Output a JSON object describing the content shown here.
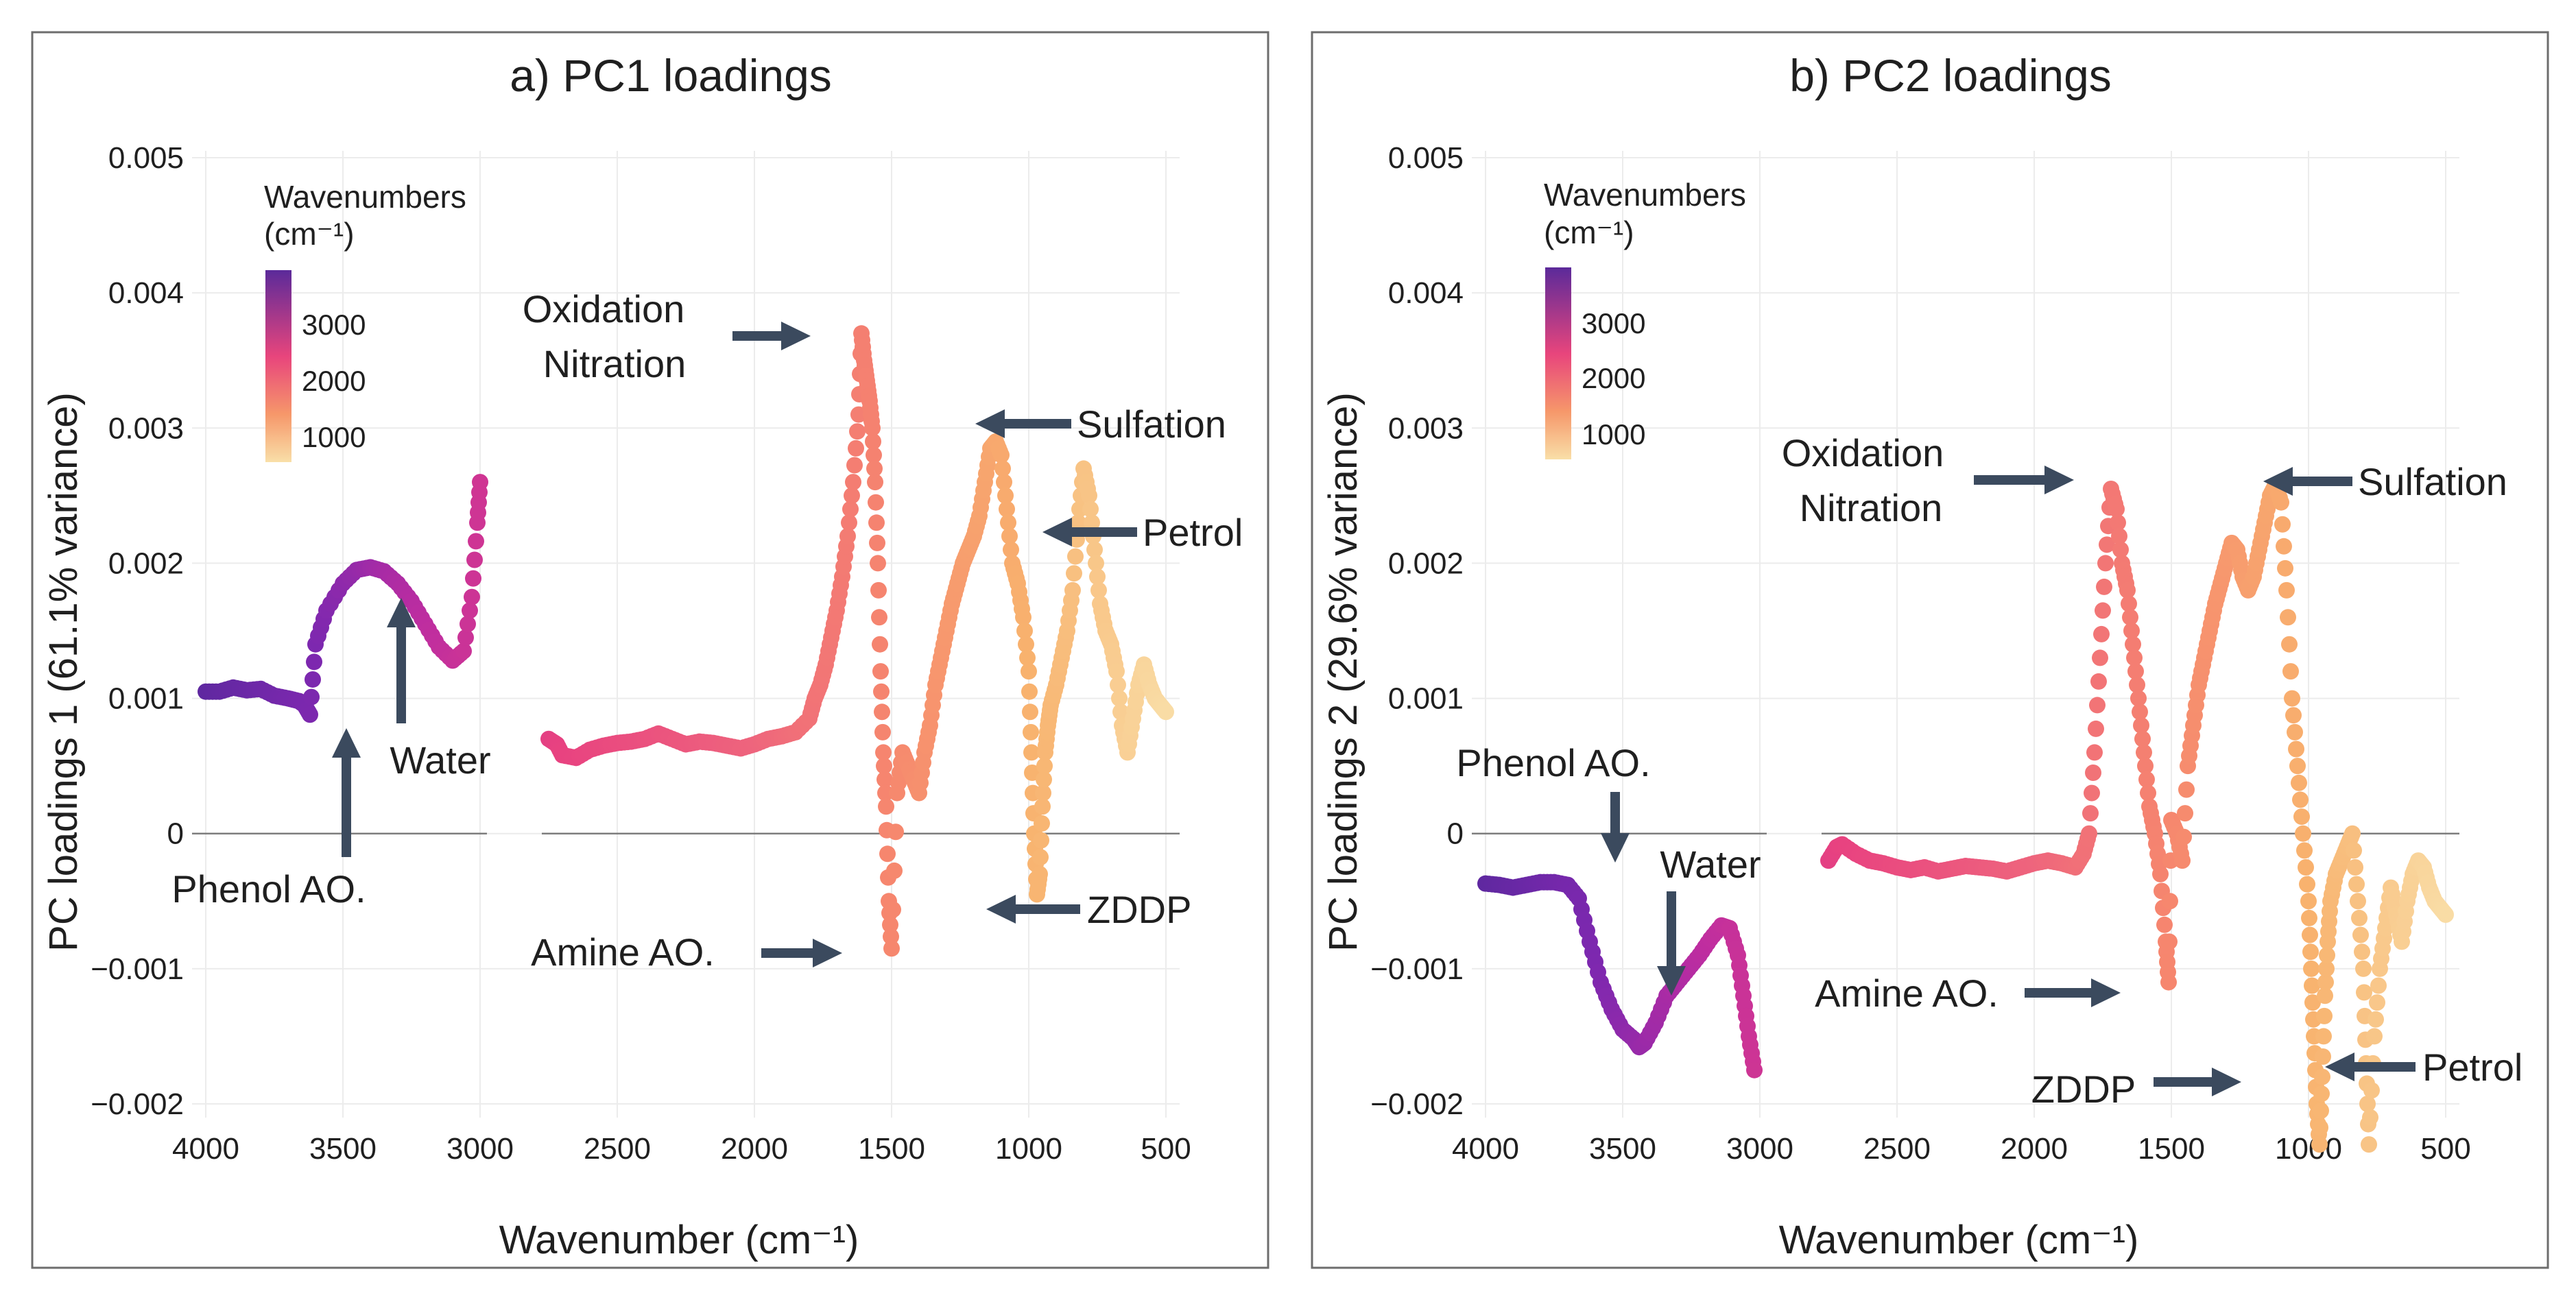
{
  "chart_data": [
    {
      "type": "scatter",
      "id": "pc1",
      "title": "a) PC1 loadings",
      "xlabel": "Wavenumber (cm⁻¹)",
      "ylabel": "PC loadings 1 (61.1% variance)",
      "xlim": [
        4000,
        500
      ],
      "x_reversed": true,
      "ylim": [
        -0.002,
        0.005
      ],
      "xticks": [
        4000,
        3500,
        3000,
        2500,
        2000,
        1500,
        1000,
        500
      ],
      "xtick_labels": [
        "4000",
        "3500",
        "3000",
        "2500",
        "2000",
        "1500",
        "1000",
        "500"
      ],
      "yticks": [
        -0.002,
        -0.001,
        0,
        0.001,
        0.002,
        0.003,
        0.004,
        0.005
      ],
      "ytick_labels": [
        "−0.002",
        "−0.001",
        "0",
        "0.001",
        "0.002",
        "0.003",
        "0.004",
        "0.005"
      ],
      "gap": [
        3000,
        2750
      ],
      "series": [
        {
          "name": "region-1",
          "x": [
            4000,
            3950,
            3900,
            3850,
            3800,
            3750,
            3700,
            3660,
            3640,
            3620,
            3600,
            3560,
            3500,
            3450,
            3400,
            3350,
            3300,
            3250,
            3200,
            3150,
            3100,
            3060,
            3030,
            3010,
            3000
          ],
          "y": [
            0.00105,
            0.00105,
            0.00108,
            0.00106,
            0.00107,
            0.00102,
            0.001,
            0.00098,
            0.00095,
            0.00088,
            0.0014,
            0.00165,
            0.00185,
            0.00195,
            0.00197,
            0.00194,
            0.00185,
            0.00172,
            0.00155,
            0.00138,
            0.00128,
            0.00135,
            0.00175,
            0.0023,
            0.0026
          ]
        },
        {
          "name": "region-2",
          "x": [
            2750,
            2720,
            2700,
            2650,
            2600,
            2550,
            2500,
            2450,
            2400,
            2350,
            2300,
            2250,
            2200,
            2150,
            2100,
            2050,
            2000,
            1950,
            1900,
            1850,
            1800,
            1780,
            1760,
            1740,
            1720,
            1700,
            1680,
            1660,
            1640,
            1620,
            1610,
            1600,
            1590,
            1580,
            1570,
            1560,
            1550,
            1540,
            1530,
            1520,
            1510,
            1500,
            1480,
            1460,
            1440,
            1420,
            1400,
            1380,
            1360,
            1340,
            1320,
            1300,
            1280,
            1260,
            1240,
            1220,
            1200,
            1180,
            1160,
            1140,
            1120,
            1100,
            1080,
            1060,
            1040,
            1020,
            1000,
            990,
            980,
            970,
            960,
            950,
            940,
            930,
            920,
            900,
            880,
            860,
            840,
            820,
            800,
            780,
            760,
            740,
            720,
            700,
            680,
            660,
            640,
            620,
            600,
            580,
            560,
            540,
            520,
            500
          ],
          "y": [
            0.0007,
            0.00066,
            0.00058,
            0.00056,
            0.00062,
            0.00065,
            0.00067,
            0.00068,
            0.0007,
            0.00074,
            0.0007,
            0.00066,
            0.00068,
            0.00067,
            0.00065,
            0.00063,
            0.00066,
            0.0007,
            0.00072,
            0.00075,
            0.00085,
            0.001,
            0.0011,
            0.00125,
            0.00145,
            0.00165,
            0.0019,
            0.0022,
            0.0026,
            0.0031,
            0.0037,
            0.0035,
            0.00335,
            0.0032,
            0.003,
            0.0026,
            0.002,
            0.0012,
            0.0006,
            0.0002,
            -0.0005,
            -0.00085,
            0.0003,
            0.0006,
            0.0005,
            0.0004,
            0.0003,
            0.0006,
            0.0008,
            0.0011,
            0.0013,
            0.0015,
            0.0017,
            0.00185,
            0.002,
            0.0021,
            0.0022,
            0.00235,
            0.0026,
            0.00285,
            0.0029,
            0.0028,
            0.0024,
            0.002,
            0.00185,
            0.0016,
            0.0012,
            0.0006,
            0.0,
            -0.00045,
            -0.0003,
            0.0002,
            0.0006,
            0.0008,
            0.00095,
            0.0011,
            0.0013,
            0.0015,
            0.0018,
            0.0023,
            0.0027,
            0.0025,
            0.0021,
            0.0017,
            0.0015,
            0.0014,
            0.0012,
            0.0008,
            0.0006,
            0.00085,
            0.0011,
            0.00125,
            0.0011,
            0.001,
            0.00095,
            0.0009
          ]
        }
      ],
      "annotations": [
        {
          "text": "Phenol AO."
        },
        {
          "text": "Water"
        },
        {
          "text": "Oxidation"
        },
        {
          "text": "Nitration"
        },
        {
          "text": "Amine AO."
        },
        {
          "text": "Sulfation"
        },
        {
          "text": "Petrol"
        },
        {
          "text": "ZDDP"
        }
      ],
      "legend": {
        "title_line1": "Wavenumbers",
        "title_line2": "(cm⁻¹)",
        "ticks": [
          "3000",
          "2000",
          "1000"
        ],
        "position": "top-left"
      }
    },
    {
      "type": "scatter",
      "id": "pc2",
      "title": "b) PC2 loadings",
      "xlabel": "Wavenumber (cm⁻¹)",
      "ylabel": "PC loadings 2 (29.6% variance)",
      "xlim": [
        4000,
        500
      ],
      "x_reversed": true,
      "ylim": [
        -0.002,
        0.005
      ],
      "xticks": [
        4000,
        3500,
        3000,
        2500,
        2000,
        1500,
        1000,
        500
      ],
      "xtick_labels": [
        "4000",
        "3500",
        "3000",
        "2500",
        "2000",
        "1500",
        "1000",
        "500"
      ],
      "yticks": [
        -0.002,
        -0.001,
        0,
        0.001,
        0.002,
        0.003,
        0.004,
        0.005
      ],
      "ytick_labels": [
        "−0.002",
        "−0.001",
        "0",
        "0.001",
        "0.002",
        "0.003",
        "0.004",
        "0.005"
      ],
      "gap": [
        3000,
        2750
      ],
      "series": [
        {
          "name": "region-1",
          "x": [
            4000,
            3950,
            3900,
            3850,
            3800,
            3750,
            3700,
            3660,
            3620,
            3580,
            3540,
            3500,
            3460,
            3440,
            3420,
            3380,
            3340,
            3300,
            3260,
            3220,
            3180,
            3140,
            3110,
            3080,
            3060,
            3040,
            3020
          ],
          "y": [
            -0.00037,
            -0.00038,
            -0.0004,
            -0.00038,
            -0.00036,
            -0.00036,
            -0.00038,
            -0.00048,
            -0.0008,
            -0.0011,
            -0.0013,
            -0.00145,
            -0.00152,
            -0.00158,
            -0.00155,
            -0.0014,
            -0.0012,
            -0.0011,
            -0.001,
            -0.0009,
            -0.00078,
            -0.00068,
            -0.0007,
            -0.0009,
            -0.0012,
            -0.0015,
            -0.00175
          ]
        },
        {
          "name": "region-2",
          "x": [
            2750,
            2720,
            2700,
            2650,
            2600,
            2550,
            2500,
            2450,
            2400,
            2350,
            2300,
            2250,
            2200,
            2150,
            2100,
            2050,
            2000,
            1950,
            1900,
            1850,
            1820,
            1800,
            1780,
            1760,
            1740,
            1720,
            1700,
            1680,
            1660,
            1640,
            1620,
            1600,
            1580,
            1560,
            1540,
            1520,
            1510,
            1500,
            1480,
            1460,
            1440,
            1420,
            1400,
            1380,
            1360,
            1340,
            1320,
            1300,
            1280,
            1260,
            1240,
            1220,
            1200,
            1180,
            1160,
            1140,
            1120,
            1100,
            1080,
            1060,
            1040,
            1020,
            1000,
            990,
            980,
            970,
            960,
            950,
            940,
            930,
            920,
            900,
            880,
            860,
            840,
            820,
            800,
            790,
            780,
            760,
            740,
            720,
            700,
            680,
            660,
            640,
            620,
            600,
            580,
            560,
            540,
            520,
            500
          ],
          "y": [
            -0.0002,
            -0.0001,
            -8e-05,
            -0.00015,
            -0.0002,
            -0.00022,
            -0.00025,
            -0.00027,
            -0.00025,
            -0.00028,
            -0.00026,
            -0.00024,
            -0.00025,
            -0.00026,
            -0.00028,
            -0.00025,
            -0.00022,
            -0.0002,
            -0.00022,
            -0.00025,
            -0.00015,
            0.0,
            0.0006,
            0.0013,
            0.002,
            0.00255,
            0.0024,
            0.002,
            0.0018,
            0.0014,
            0.001,
            0.0006,
            0.0002,
            0.0,
            -0.0003,
            -0.0008,
            -0.0011,
            0.0001,
            0.0,
            -0.0002,
            0.0005,
            0.0008,
            0.0011,
            0.0013,
            0.0015,
            0.0017,
            0.00185,
            0.002,
            0.00215,
            0.0021,
            0.0019,
            0.0018,
            0.0019,
            0.0021,
            0.0023,
            0.0025,
            0.00258,
            0.00245,
            0.0018,
            0.001,
            0.0005,
            0.0,
            -0.0005,
            -0.001,
            -0.0015,
            -0.002,
            -0.0023,
            -0.0018,
            -0.0012,
            -0.0008,
            -0.0005,
            -0.0003,
            -0.0002,
            -0.0001,
            0.0,
            -0.0005,
            -0.001,
            -0.0017,
            -0.0023,
            -0.0015,
            -0.001,
            -0.0007,
            -0.0004,
            -0.0006,
            -0.0008,
            -0.0005,
            -0.0003,
            -0.0002,
            -0.00025,
            -0.0004,
            -0.0005,
            -0.00055,
            -0.0006
          ]
        }
      ],
      "annotations": [
        {
          "text": "Phenol AO."
        },
        {
          "text": "Water"
        },
        {
          "text": "Oxidation"
        },
        {
          "text": "Nitration"
        },
        {
          "text": "Amine AO."
        },
        {
          "text": "Sulfation"
        },
        {
          "text": "Petrol"
        },
        {
          "text": "ZDDP"
        }
      ],
      "legend": {
        "title_line1": "Wavenumbers",
        "title_line2": "(cm⁻¹)",
        "ticks": [
          "3000",
          "2000",
          "1000"
        ],
        "position": "top-left"
      }
    }
  ]
}
